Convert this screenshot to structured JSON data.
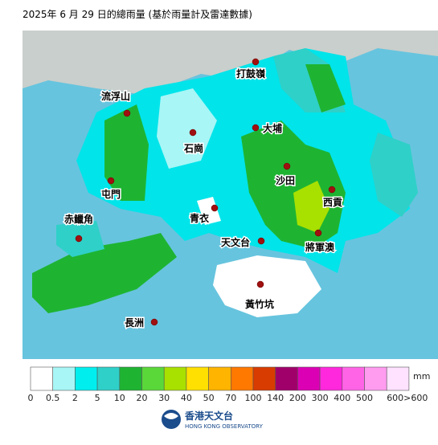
{
  "title": "2025年 6 月 29 日的總雨量 (基於雨量計及雷達數據)",
  "places": [
    "打鼓嶺",
    "流浮山",
    "大埔",
    "石崗",
    "沙田",
    "屯門",
    "西貢",
    "青衣",
    "赤鱲角",
    "天文台",
    "將軍澳",
    "黃竹坑",
    "長洲"
  ],
  "legend": {
    "unit": "mm",
    "items": [
      {
        "label": "0",
        "color": "#ffffff"
      },
      {
        "label": "0.5",
        "color": "#a8f6f6"
      },
      {
        "label": "2",
        "color": "#00eeee"
      },
      {
        "label": "5",
        "color": "#2fd0c8"
      },
      {
        "label": "10",
        "color": "#1eb432"
      },
      {
        "label": "20",
        "color": "#5ad83a"
      },
      {
        "label": "30",
        "color": "#a8e000"
      },
      {
        "label": "40",
        "color": "#ffe000"
      },
      {
        "label": "50",
        "color": "#ffb400"
      },
      {
        "label": "70",
        "color": "#ff7800"
      },
      {
        "label": "100",
        "color": "#d83c00"
      },
      {
        "label": "140",
        "color": "#a0006a"
      },
      {
        "label": "200",
        "color": "#dc00b4"
      },
      {
        "label": "300",
        "color": "#ff28dc"
      },
      {
        "label": "400",
        "color": "#ff64e6"
      },
      {
        "label": "500",
        "color": "#ff9cf0"
      },
      {
        "label": "600>600",
        "color": "#ffe2ff"
      }
    ]
  },
  "logo": {
    "chinese": "香港天文台",
    "english": "HONG KONG OBSERVATORY"
  }
}
